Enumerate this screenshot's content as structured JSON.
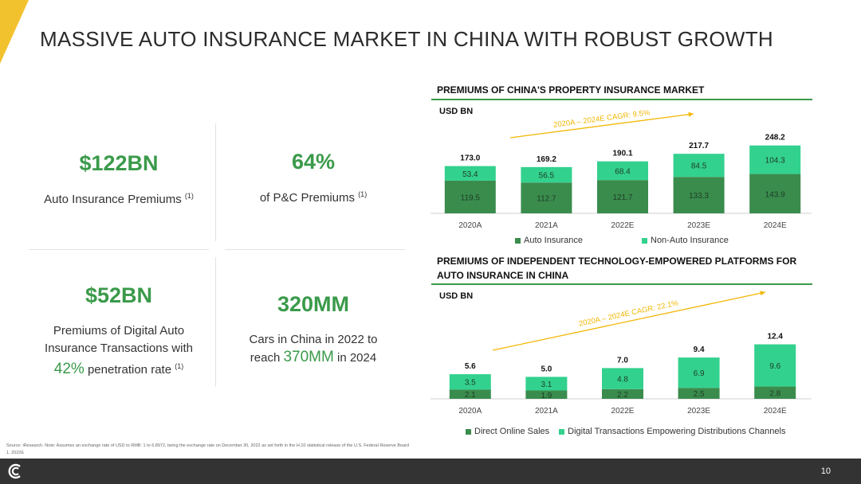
{
  "title": "MASSIVE AUTO INSURANCE MARKET IN CHINA WITH ROBUST GROWTH",
  "stats": [
    {
      "value": "$122BN",
      "desc": "Auto Insurance Premiums",
      "note": "(1)"
    },
    {
      "value": "64%",
      "desc": "of P&C Premiums",
      "note": "(1)"
    },
    {
      "value": "$52BN",
      "desc_line1": "Premiums of Digital Auto",
      "desc_line2": "Insurance Transactions with",
      "highlight": "42%",
      "desc_line3": "penetration rate",
      "note": "(1)"
    },
    {
      "value": "320MM",
      "desc_line1": "Cars in China in 2022 to",
      "desc_pre": "reach",
      "highlight": "370MM",
      "desc_post": "in 2024"
    }
  ],
  "colors": {
    "dark_green": "#3a8c4d",
    "light_green": "#33d18e",
    "accent": "#3a9a4a",
    "cagr_line": "#f2b705",
    "footer": "#333333"
  },
  "chart_data": [
    {
      "type": "bar",
      "title": "PREMIUMS OF CHINA'S PROPERTY INSURANCE MARKET",
      "unit": "USD BN",
      "cagr": "2020A – 2024E CAGR: 9.5%",
      "categories": [
        "2020A",
        "2021A",
        "2022E",
        "2023E",
        "2024E"
      ],
      "series": [
        {
          "name": "Auto Insurance",
          "values": [
            119.5,
            112.7,
            121.7,
            133.3,
            143.9
          ]
        },
        {
          "name": "Non-Auto Insurance",
          "values": [
            53.4,
            56.5,
            68.4,
            84.5,
            104.3
          ]
        }
      ],
      "totals": [
        "173.0",
        "169.2",
        "190.1",
        "217.7",
        "248.2"
      ],
      "stacked": true
    },
    {
      "type": "bar",
      "title_line1": "PREMIUMS OF INDEPENDENT TECHNOLOGY-EMPOWERED PLATFORMS FOR",
      "title_line2": "AUTO INSURANCE IN CHINA",
      "unit": "USD BN",
      "cagr": "2020A – 2024E CAGR: 22.1%",
      "categories": [
        "2020A",
        "2021A",
        "2022E",
        "2023E",
        "2024E"
      ],
      "series": [
        {
          "name": "Direct Online Sales",
          "values": [
            2.1,
            1.9,
            2.2,
            2.5,
            2.8
          ]
        },
        {
          "name": "Digital Transactions Empowering Distributions Channels",
          "values": [
            3.5,
            3.1,
            4.8,
            6.9,
            9.6
          ]
        }
      ],
      "totals": [
        "5.6",
        "5.0",
        "7.0",
        "9.4",
        "12.4"
      ],
      "stacked": true
    }
  ],
  "source_line1": "Source: iResearch. Note: Assumes an exchange rate of USD to RMB: 1 to 6.8972, being the exchange rate on December 30, 2022 as set forth in the H.10 statistical release of the U.S. Federal Reserve Board",
  "source_line2": "1.   2022E",
  "page_number": "10"
}
